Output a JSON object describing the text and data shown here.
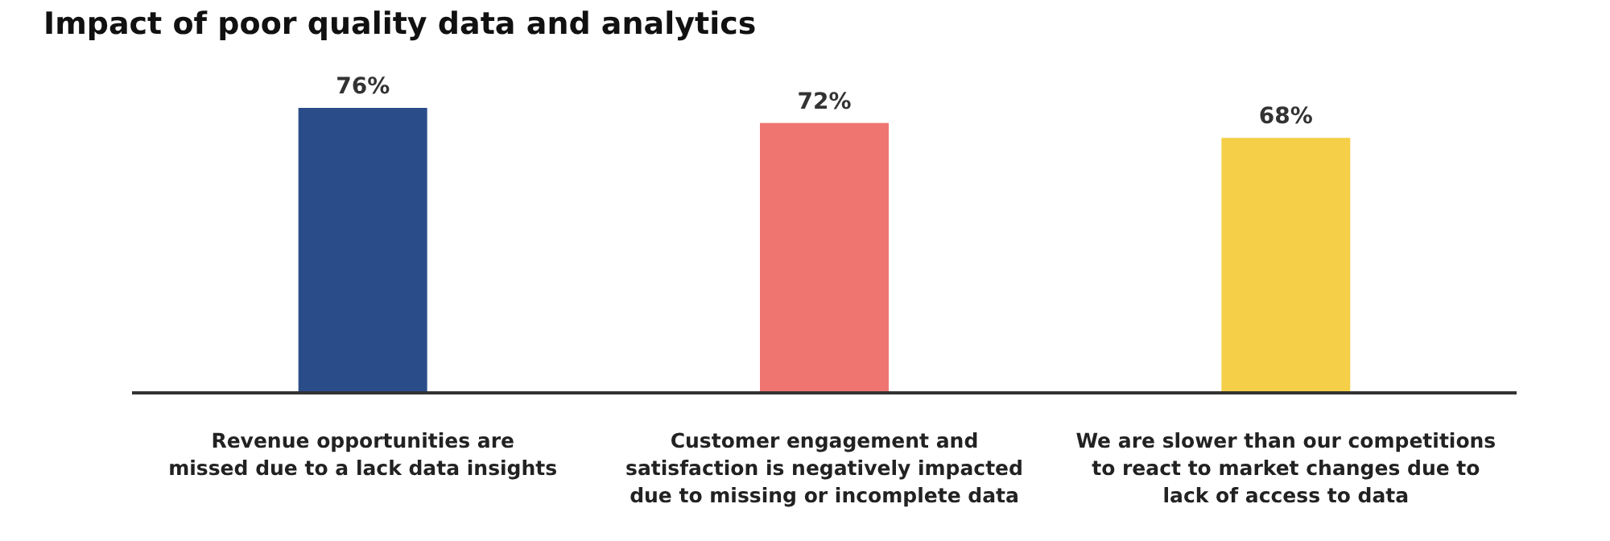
{
  "chart_data": {
    "type": "bar",
    "title": "Impact of poor quality data and analytics",
    "categories": [
      "Revenue opportunities are\nmissed due to a lack data insights",
      "Customer engagement and\nsatisfaction is negatively impacted\ndue to missing or incomplete data",
      "We are slower than our competitions\nto react to market changes due to\nlack of access to data"
    ],
    "values": [
      76,
      72,
      68
    ],
    "colors": [
      "#2a4d8a",
      "#ef7670",
      "#f5cf47"
    ],
    "value_labels": [
      "76%",
      "72%",
      "68%"
    ]
  }
}
